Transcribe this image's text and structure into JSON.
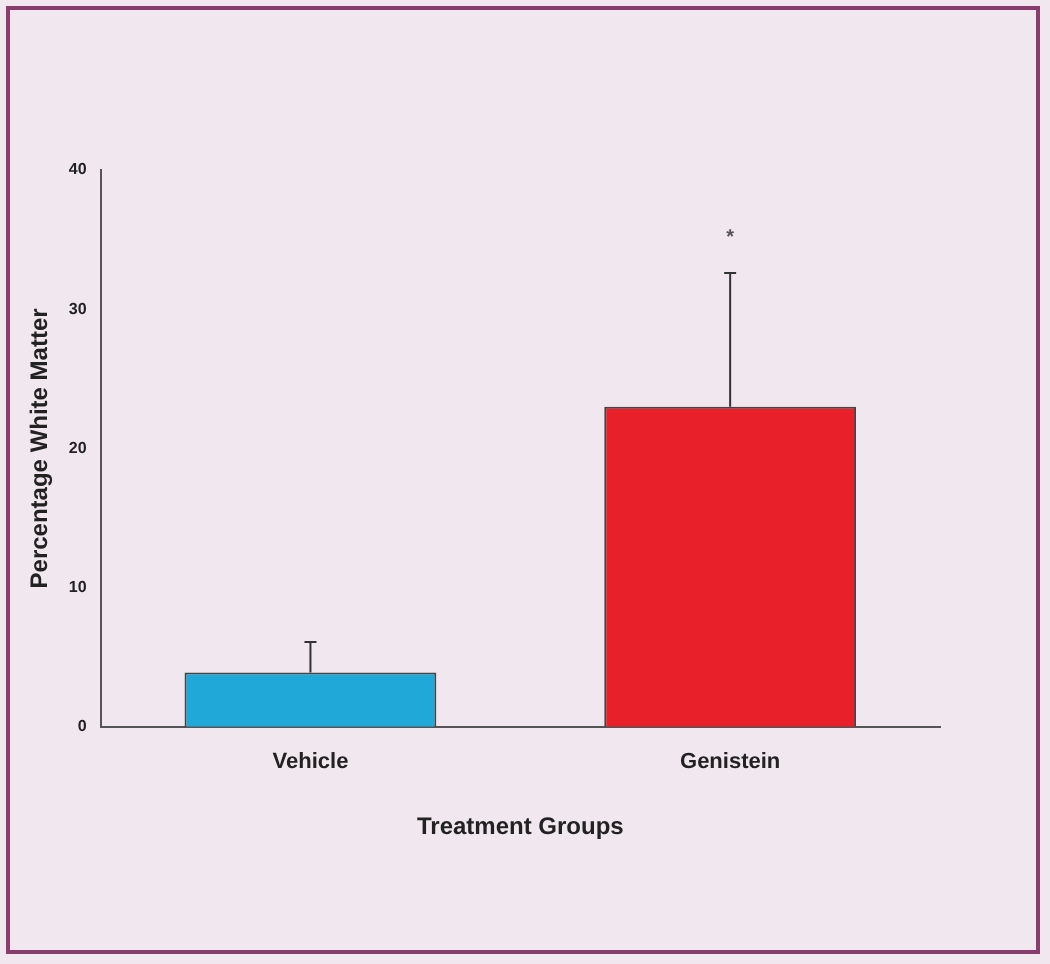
{
  "chart_data": {
    "type": "bar",
    "xlabel": "Treatment Groups",
    "ylabel": "Percentage White Matter",
    "categories": [
      "Vehicle",
      "Genistein"
    ],
    "values": [
      3.9,
      23
    ],
    "colors": [
      "#1fa8d8",
      "#e8202a"
    ],
    "errors": [
      [
        3.9,
        6.1
      ],
      [
        23,
        32.6
      ]
    ],
    "ylim": [
      0,
      40
    ],
    "yticks": [
      0,
      10,
      20,
      30,
      40
    ],
    "annotations": [
      "*"
    ]
  }
}
